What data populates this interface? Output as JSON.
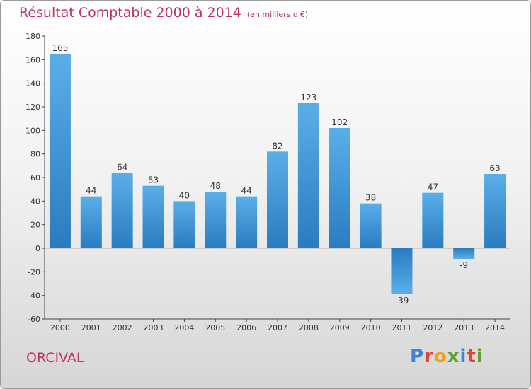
{
  "header": {
    "title": "Résultat Comptable 2000 à 2014",
    "subtitle": "(en milliers d'€)"
  },
  "footer": {
    "place": "ORCIVAL",
    "brand": "Proxiti"
  },
  "colors": {
    "bar_light": "#5aaee8",
    "bar_dark": "#2a7cbf",
    "title": "#c0335a"
  },
  "chart_data": {
    "type": "bar",
    "title": "Résultat Comptable 2000 à 2014",
    "subtitle": "(en milliers d'€)",
    "categories": [
      "2000",
      "2001",
      "2002",
      "2003",
      "2004",
      "2005",
      "2006",
      "2007",
      "2008",
      "2009",
      "2010",
      "2011",
      "2012",
      "2013",
      "2014"
    ],
    "values": [
      165,
      44,
      64,
      53,
      40,
      48,
      44,
      82,
      123,
      102,
      38,
      -39,
      47,
      -9,
      63
    ],
    "ylim": [
      -60,
      180
    ],
    "yticks": [
      -60,
      -40,
      -20,
      0,
      20,
      40,
      60,
      80,
      100,
      120,
      140,
      160,
      180
    ],
    "grid": false,
    "legend": "none"
  }
}
